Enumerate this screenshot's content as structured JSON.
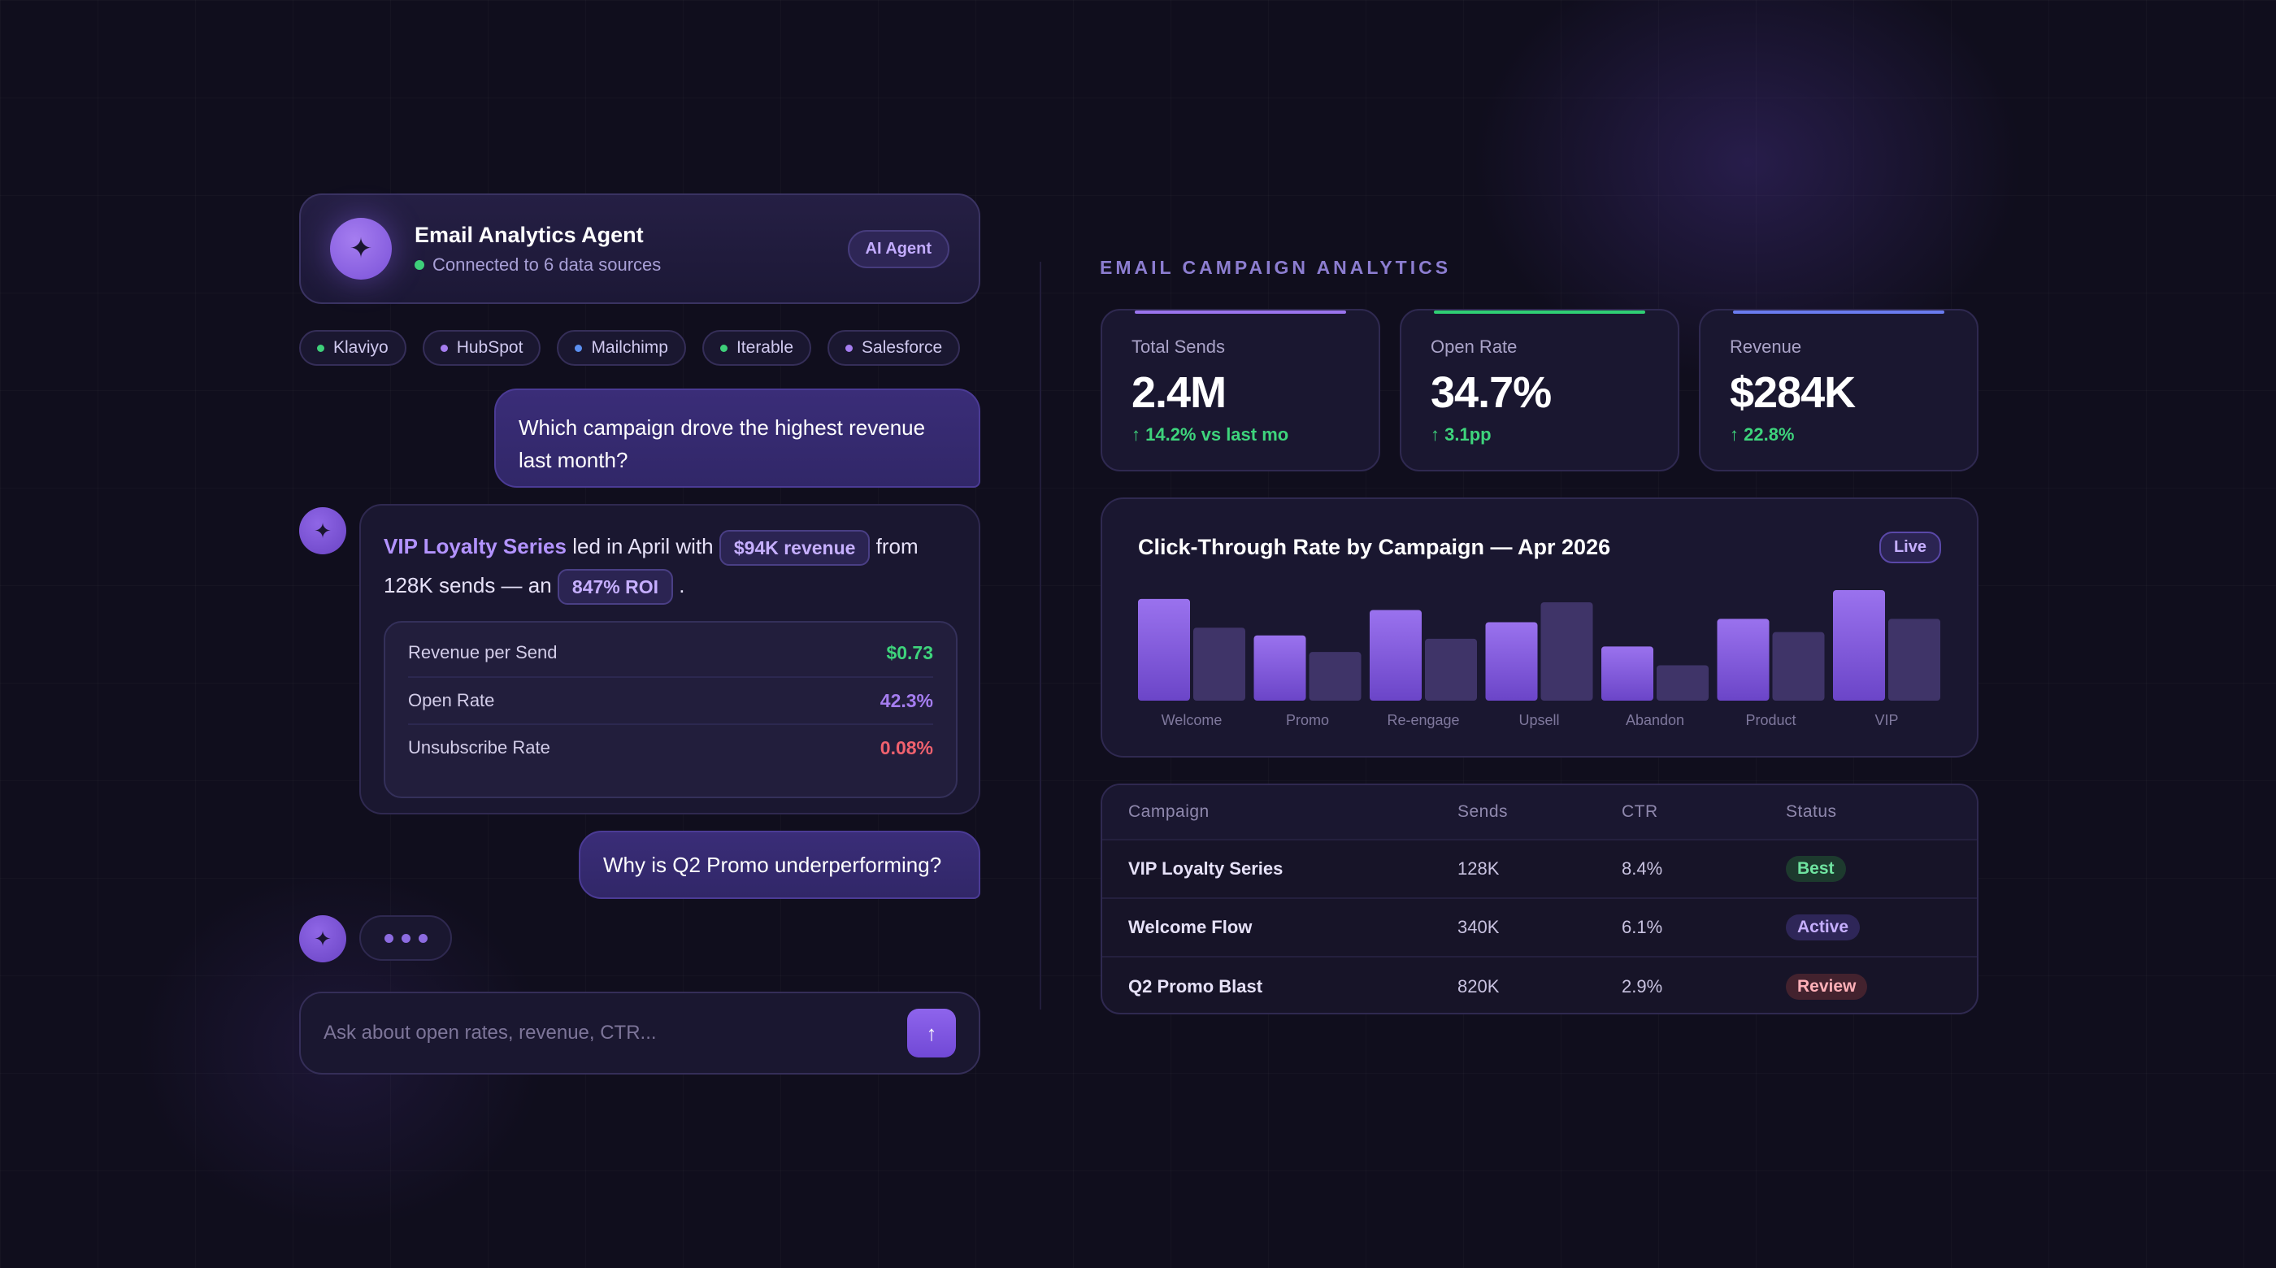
{
  "agent": {
    "title": "Email Analytics Agent",
    "status": "Connected to 6 data sources",
    "badge": "AI Agent",
    "avatar_icon": "sparkle-icon"
  },
  "sources": [
    {
      "label": "Klaviyo",
      "color": "#3ecf7a"
    },
    {
      "label": "HubSpot",
      "color": "#a57df0"
    },
    {
      "label": "Mailchimp",
      "color": "#5b8ff0"
    },
    {
      "label": "Iterable",
      "color": "#3ecf7a"
    },
    {
      "label": "Salesforce",
      "color": "#a57df0"
    }
  ],
  "chat": {
    "user_message_1": "Which campaign drove the highest revenue last month?",
    "bot_reply": {
      "campaign": "VIP Loyalty Series",
      "text_1": " led in April with ",
      "revenue_pill": "$94K revenue",
      "text_2": " from 128K sends — an ",
      "roi_pill": "847% ROI",
      "text_3": " ."
    },
    "metrics": [
      {
        "label": "Revenue per Send",
        "value": "$0.73",
        "color": "#3ed47c"
      },
      {
        "label": "Open Rate",
        "value": "42.3%",
        "color": "#a57df0"
      },
      {
        "label": "Unsubscribe Rate",
        "value": "0.08%",
        "color": "#f0616e"
      }
    ],
    "user_message_2": "Why is Q2 Promo underperforming?",
    "input_placeholder": "Ask about open rates, revenue, CTR..."
  },
  "dashboard": {
    "section_title": "EMAIL CAMPAIGN ANALYTICS",
    "kpis": [
      {
        "label": "Total Sends",
        "value": "2.4M",
        "delta": "↑ 14.2% vs last mo",
        "accent": "#9a74ee"
      },
      {
        "label": "Open Rate",
        "value": "34.7%",
        "delta": "↑ 3.1pp",
        "accent": "#2fcf74"
      },
      {
        "label": "Revenue",
        "value": "$284K",
        "delta": "↑ 22.8%",
        "accent": "#6a7cf0"
      }
    ],
    "live_badge": "Live",
    "table": {
      "headers": [
        "Campaign",
        "Sends",
        "CTR",
        "Status"
      ],
      "rows": [
        {
          "campaign": "VIP Loyalty Series",
          "sends": "128K",
          "ctr": "8.4%",
          "status": "Best",
          "status_color": "#6fe3a0",
          "status_bg": "#1d3a2e"
        },
        {
          "campaign": "Welcome Flow",
          "sends": "340K",
          "ctr": "6.1%",
          "status": "Active",
          "status_color": "#c6afff",
          "status_bg": "#2e2658"
        },
        {
          "campaign": "Q2 Promo Blast",
          "sends": "820K",
          "ctr": "2.9%",
          "status": "Review",
          "status_color": "#ffb0b8",
          "status_bg": "#43222e"
        }
      ]
    }
  },
  "chart_data": {
    "type": "bar",
    "title": "Click-Through Rate by Campaign — Apr 2026",
    "categories": [
      "Welcome",
      "Promo",
      "Re-engage",
      "Upsell",
      "Abandon",
      "Product",
      "VIP"
    ],
    "series": [
      {
        "values": [
          0.92,
          0.59,
          0.82,
          0.71,
          0.49,
          0.74,
          1.0
        ],
        "color": "#8b62e0"
      },
      {
        "values": [
          0.66,
          0.44,
          0.56,
          0.89,
          0.32,
          0.62,
          0.74
        ],
        "color": "#3f3468"
      }
    ],
    "ylim": [
      0,
      1
    ],
    "grid": false,
    "ylabel": "",
    "xlabel": ""
  }
}
